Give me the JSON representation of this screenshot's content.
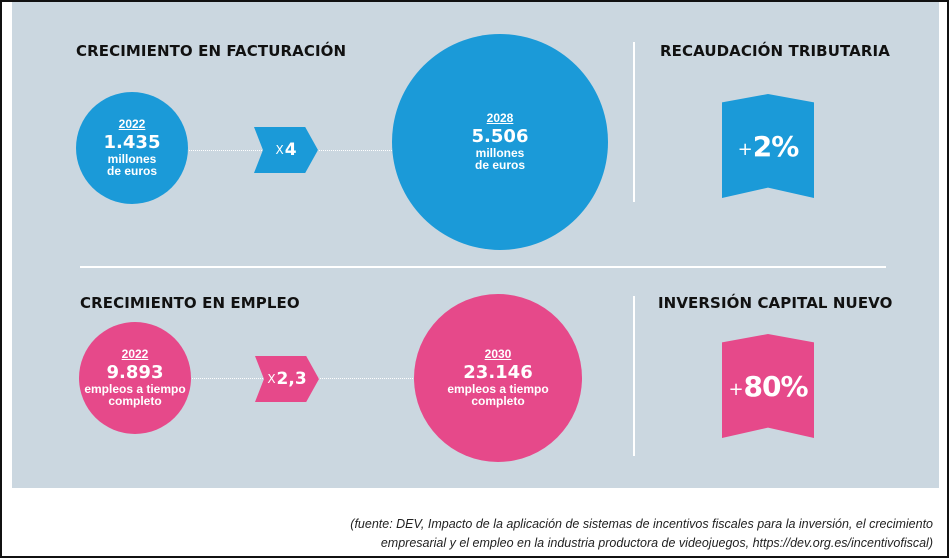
{
  "revenue": {
    "heading": "CRECIMIENTO EN FACTURACIÓN",
    "start": {
      "year": "2022",
      "value": "1.435",
      "unit_line1": "millones",
      "unit_line2": "de euros"
    },
    "multiplier_prefix": "X",
    "multiplier_value": "4",
    "end": {
      "year": "2028",
      "value": "5.506",
      "unit_line1": "millones",
      "unit_line2": "de euros"
    },
    "color": "#1b9ad8"
  },
  "tax": {
    "heading": "RECAUDACIÓN TRIBUTARIA",
    "sign": "+",
    "value": "2%",
    "color": "#1b9ad8"
  },
  "employment": {
    "heading": "CRECIMIENTO EN EMPLEO",
    "start": {
      "year": "2022",
      "value": "9.893",
      "unit_line1": "empleos a tiempo",
      "unit_line2": "completo"
    },
    "multiplier_prefix": "X",
    "multiplier_value": "2,3",
    "end": {
      "year": "2030",
      "value": "23.146",
      "unit_line1": "empleos a tiempo",
      "unit_line2": "completo"
    },
    "color": "#e6498a"
  },
  "investment": {
    "heading": "INVERSIÓN CAPITAL NUEVO",
    "sign": "+",
    "value": "80%",
    "color": "#e6498a"
  },
  "source": {
    "line1": "(fuente: DEV, Impacto de la aplicación de sistemas de incentivos fiscales para la inversión, el crecimiento",
    "line2": "empresarial y el empleo en la industria productora de videojuegos, https://dev.org.es/incentivofiscal)"
  },
  "colors": {
    "panel": "#cbd7e0",
    "blue": "#1b9ad8",
    "pink": "#e6498a"
  }
}
